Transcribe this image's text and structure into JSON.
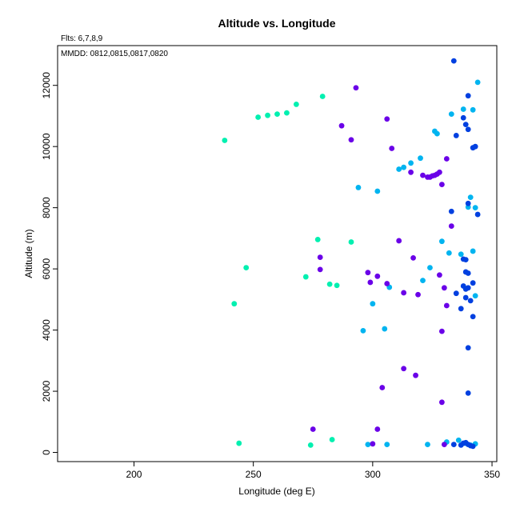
{
  "chart_data": {
    "type": "scatter",
    "title": "Altitude vs. Longitude",
    "annotations": [
      "Flts: 6,7,8,9",
      "MMDD: 0812,0815,0817,0820"
    ],
    "xlabel": "Longitude (deg E)",
    "ylabel": "Altitude (m)",
    "xlim": [
      168,
      352
    ],
    "ylim": [
      -300,
      13300
    ],
    "xticks": [
      200,
      250,
      300,
      350
    ],
    "yticks": [
      0,
      2000,
      4000,
      6000,
      8000,
      10000,
      12000
    ],
    "grid": false,
    "series": [
      {
        "color": "#00f0b0",
        "points": [
          [
            238,
            10200
          ],
          [
            252,
            10960
          ],
          [
            256,
            11020
          ],
          [
            260,
            11060
          ],
          [
            264,
            11100
          ],
          [
            268,
            11380
          ],
          [
            279,
            11640
          ],
          [
            277,
            6960
          ],
          [
            291,
            6880
          ],
          [
            247,
            6040
          ],
          [
            272,
            5740
          ],
          [
            282,
            5500
          ],
          [
            285,
            5460
          ],
          [
            242,
            4860
          ],
          [
            244,
            300
          ],
          [
            274,
            240
          ],
          [
            283,
            420
          ]
        ]
      },
      {
        "color": "#00b4f0",
        "points": [
          [
            344,
            12100
          ],
          [
            333,
            11060
          ],
          [
            338,
            11220
          ],
          [
            342,
            11200
          ],
          [
            326,
            10500
          ],
          [
            327,
            10420
          ],
          [
            320,
            9620
          ],
          [
            316,
            9460
          ],
          [
            313,
            9320
          ],
          [
            311,
            9260
          ],
          [
            294,
            8660
          ],
          [
            302,
            8540
          ],
          [
            341,
            8340
          ],
          [
            340,
            8020
          ],
          [
            343,
            8000
          ],
          [
            329,
            6900
          ],
          [
            332,
            6520
          ],
          [
            337,
            6480
          ],
          [
            342,
            6580
          ],
          [
            324,
            6040
          ],
          [
            321,
            5620
          ],
          [
            307,
            5400
          ],
          [
            300,
            4860
          ],
          [
            296,
            3980
          ],
          [
            305,
            4040
          ],
          [
            343,
            5120
          ],
          [
            298,
            260
          ],
          [
            306,
            260
          ],
          [
            323,
            260
          ],
          [
            331,
            340
          ],
          [
            336,
            400
          ],
          [
            339,
            300
          ],
          [
            341,
            240
          ],
          [
            343,
            280
          ]
        ]
      },
      {
        "color": "#0040e0",
        "points": [
          [
            334,
            12800
          ],
          [
            340,
            11660
          ],
          [
            338,
            10940
          ],
          [
            339,
            10720
          ],
          [
            340,
            10560
          ],
          [
            335,
            10360
          ],
          [
            342,
            9960
          ],
          [
            343,
            10000
          ],
          [
            340,
            8140
          ],
          [
            333,
            7880
          ],
          [
            344,
            7780
          ],
          [
            338,
            6320
          ],
          [
            339,
            6300
          ],
          [
            339,
            5900
          ],
          [
            340,
            5860
          ],
          [
            342,
            5540
          ],
          [
            338,
            5440
          ],
          [
            340,
            5380
          ],
          [
            339,
            5340
          ],
          [
            335,
            5200
          ],
          [
            339,
            5060
          ],
          [
            341,
            4960
          ],
          [
            337,
            4700
          ],
          [
            342,
            4440
          ],
          [
            340,
            3420
          ],
          [
            340,
            1940
          ],
          [
            334,
            260
          ],
          [
            337,
            240
          ],
          [
            338,
            300
          ],
          [
            339,
            320
          ],
          [
            340,
            260
          ],
          [
            341,
            220
          ],
          [
            342,
            200
          ]
        ]
      },
      {
        "color": "#6a00e8",
        "points": [
          [
            293,
            11920
          ],
          [
            306,
            10900
          ],
          [
            287,
            10680
          ],
          [
            291,
            10220
          ],
          [
            308,
            9940
          ],
          [
            316,
            9160
          ],
          [
            321,
            9060
          ],
          [
            323,
            9000
          ],
          [
            324,
            9000
          ],
          [
            325,
            9040
          ],
          [
            326,
            9060
          ],
          [
            327,
            9100
          ],
          [
            328,
            9160
          ],
          [
            331,
            9600
          ],
          [
            329,
            8760
          ],
          [
            333,
            7400
          ],
          [
            311,
            6920
          ],
          [
            278,
            6380
          ],
          [
            317,
            6360
          ],
          [
            278,
            5980
          ],
          [
            298,
            5880
          ],
          [
            302,
            5760
          ],
          [
            328,
            5800
          ],
          [
            299,
            5560
          ],
          [
            306,
            5520
          ],
          [
            330,
            5380
          ],
          [
            313,
            5220
          ],
          [
            319,
            5160
          ],
          [
            331,
            4800
          ],
          [
            329,
            3960
          ],
          [
            313,
            2740
          ],
          [
            318,
            2520
          ],
          [
            304,
            2120
          ],
          [
            329,
            1640
          ],
          [
            275,
            760
          ],
          [
            302,
            760
          ],
          [
            300,
            280
          ],
          [
            330,
            260
          ]
        ]
      }
    ]
  }
}
